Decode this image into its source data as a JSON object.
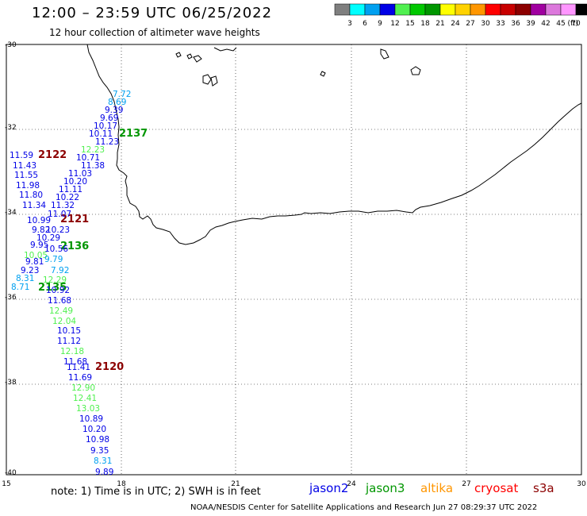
{
  "header": {
    "title": "12:00 – 23:59 UTC 06/25/2022",
    "subtitle": "12 hour collection of altimeter wave heights"
  },
  "colorbar": {
    "unit": "(ft)",
    "bins": [
      {
        "color": "#7f7f7f",
        "label": "3"
      },
      {
        "color": "#00ffff",
        "label": "6"
      },
      {
        "color": "#00a0f0",
        "label": "9"
      },
      {
        "color": "#0000e6",
        "label": "12"
      },
      {
        "color": "#50f050",
        "label": "15"
      },
      {
        "color": "#00c800",
        "label": "18"
      },
      {
        "color": "#009600",
        "label": "21"
      },
      {
        "color": "#ffff00",
        "label": "24"
      },
      {
        "color": "#ffd200",
        "label": "27"
      },
      {
        "color": "#ff9600",
        "label": "30"
      },
      {
        "color": "#ff0000",
        "label": "33"
      },
      {
        "color": "#c80000",
        "label": "36"
      },
      {
        "color": "#8c0000",
        "label": "39"
      },
      {
        "color": "#a000a0",
        "label": "42"
      },
      {
        "color": "#dc78dc",
        "label": "45"
      },
      {
        "color": "#ff96ff",
        "label": "70"
      },
      {
        "color": "#000000",
        "label": ""
      }
    ]
  },
  "map": {
    "lon_range": [
      15,
      30
    ],
    "lat_range": [
      -30,
      -40
    ],
    "lon_ticks": [
      "15",
      "18",
      "21",
      "24",
      "27",
      "30"
    ],
    "lat_ticks": [
      "-30",
      "-32",
      "-34",
      "-36",
      "-38",
      "-40"
    ],
    "time_labels": [
      {
        "text": "2137",
        "color": "#009600"
      },
      {
        "text": "2122",
        "color": "#8c0000"
      },
      {
        "text": "2121",
        "color": "#8c0000"
      },
      {
        "text": "2136",
        "color": "#009600"
      },
      {
        "text": "2135",
        "color": "#009600"
      },
      {
        "text": "2120",
        "color": "#8c0000"
      }
    ],
    "wave_labels": [
      {
        "text": "7.72",
        "color": "#00a0f0"
      },
      {
        "text": "8.69",
        "color": "#00a0f0"
      },
      {
        "text": "9.39",
        "color": "#0000e6"
      },
      {
        "text": "9.69",
        "color": "#0000e6"
      },
      {
        "text": "10.17",
        "color": "#0000e6"
      },
      {
        "text": "10.11",
        "color": "#0000e6"
      },
      {
        "text": "11.23",
        "color": "#0000e6"
      },
      {
        "text": "12.23",
        "color": "#50f050"
      },
      {
        "text": "10.71",
        "color": "#0000e6"
      },
      {
        "text": "11.38",
        "color": "#0000e6"
      },
      {
        "text": "11.03",
        "color": "#0000e6"
      },
      {
        "text": "10.20",
        "color": "#0000e6"
      },
      {
        "text": "11.11",
        "color": "#0000e6"
      },
      {
        "text": "10.22",
        "color": "#0000e6"
      },
      {
        "text": "11.32",
        "color": "#0000e6"
      },
      {
        "text": "11.07",
        "color": "#0000e6"
      },
      {
        "text": "11.59",
        "color": "#0000e6"
      },
      {
        "text": "11.43",
        "color": "#0000e6"
      },
      {
        "text": "11.55",
        "color": "#0000e6"
      },
      {
        "text": "11.98",
        "color": "#0000e6"
      },
      {
        "text": "11.80",
        "color": "#0000e6"
      },
      {
        "text": "11.34",
        "color": "#0000e6"
      },
      {
        "text": "10.99",
        "color": "#0000e6"
      },
      {
        "text": "9.82",
        "color": "#0000e6"
      },
      {
        "text": "10.23",
        "color": "#0000e6"
      },
      {
        "text": "10.29",
        "color": "#0000e6"
      },
      {
        "text": "9.95",
        "color": "#0000e6"
      },
      {
        "text": "10.56",
        "color": "#0000e6"
      },
      {
        "text": "10.05",
        "color": "#50f050"
      },
      {
        "text": "9.79",
        "color": "#00a0f0"
      },
      {
        "text": "9.81",
        "color": "#0000e6"
      },
      {
        "text": "9.23",
        "color": "#0000e6"
      },
      {
        "text": "7.92",
        "color": "#00a0f0"
      },
      {
        "text": "8.31",
        "color": "#00a0f0"
      },
      {
        "text": "12.29",
        "color": "#50f050"
      },
      {
        "text": "8.71",
        "color": "#00a0f0"
      },
      {
        "text": "10.92",
        "color": "#0000e6"
      },
      {
        "text": "11.68",
        "color": "#0000e6"
      },
      {
        "text": "12.49",
        "color": "#50f050"
      },
      {
        "text": "12.04",
        "color": "#50f050"
      },
      {
        "text": "10.15",
        "color": "#0000e6"
      },
      {
        "text": "11.12",
        "color": "#0000e6"
      },
      {
        "text": "12.18",
        "color": "#50f050"
      },
      {
        "text": "11.68",
        "color": "#0000e6"
      },
      {
        "text": "11.41",
        "color": "#0000e6"
      },
      {
        "text": "11.69",
        "color": "#0000e6"
      },
      {
        "text": "12.90",
        "color": "#50f050"
      },
      {
        "text": "12.41",
        "color": "#50f050"
      },
      {
        "text": "13.03",
        "color": "#50f050"
      },
      {
        "text": "10.89",
        "color": "#0000e6"
      },
      {
        "text": "10.20",
        "color": "#0000e6"
      },
      {
        "text": "10.98",
        "color": "#0000e6"
      },
      {
        "text": "9.35",
        "color": "#0000e6"
      },
      {
        "text": "8.31",
        "color": "#00a0f0"
      },
      {
        "text": "9.89",
        "color": "#0000e6"
      }
    ]
  },
  "footer": {
    "note": "note:  1) Time is in UTC;  2) SWH is in feet",
    "missions": [
      {
        "label": "jason2",
        "color": "#0000e6"
      },
      {
        "label": "jason3",
        "color": "#009600"
      },
      {
        "label": "altika",
        "color": "#ff9600"
      },
      {
        "label": "cryosat",
        "color": "#ff0000"
      },
      {
        "label": "s3a",
        "color": "#8c0000"
      }
    ],
    "credit": "NOAA/NESDIS Center for Satellite Applications and Research    Jun 27 08:29:37 UTC 2022"
  }
}
